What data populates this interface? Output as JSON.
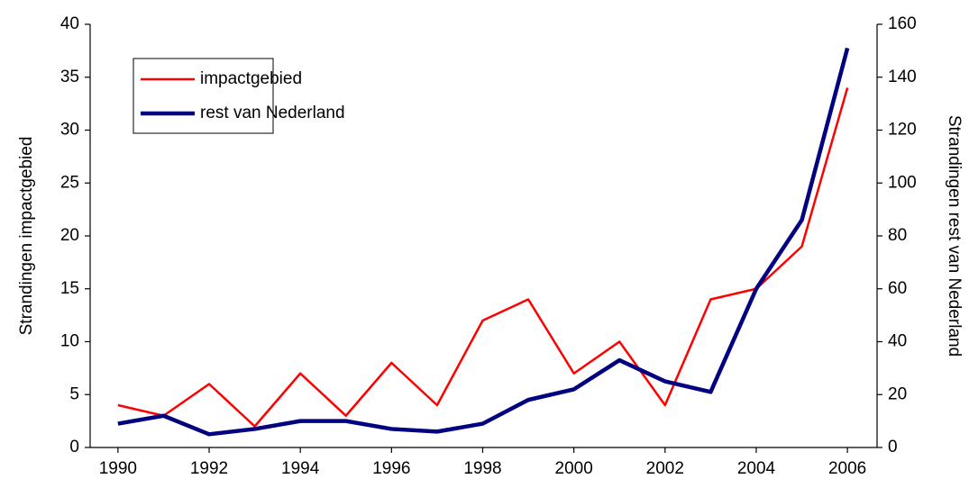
{
  "chart_data": {
    "type": "line",
    "x": [
      1990,
      1991,
      1992,
      1993,
      1994,
      1995,
      1996,
      1997,
      1998,
      1999,
      2000,
      2001,
      2002,
      2003,
      2004,
      2005,
      2006
    ],
    "series": [
      {
        "name": "impactgebied",
        "color": "#ff0000",
        "values": [
          4,
          3,
          6,
          2,
          7,
          3,
          8,
          4,
          12,
          14,
          7,
          10,
          4,
          14,
          15,
          19,
          34
        ]
      },
      {
        "name": "rest van Nederland",
        "color": "#000080",
        "axis": "y2",
        "values": [
          9,
          12,
          5,
          7,
          10,
          10,
          7,
          6,
          9,
          18,
          22,
          33,
          25,
          21,
          60,
          86,
          151
        ]
      }
    ],
    "ylabel": "Strandingen impactgebied",
    "y2label": "Strandingen rest van Nederland",
    "xlim": [
      1989.39,
      2006.65
    ],
    "xticks": [
      1990,
      1992,
      1994,
      1996,
      1998,
      2000,
      2002,
      2004,
      2006
    ],
    "ylim": [
      0,
      40
    ],
    "yticks": [
      0,
      5,
      10,
      15,
      20,
      25,
      30,
      35,
      40
    ],
    "y2lim": [
      0,
      160
    ],
    "y2ticks": [
      0,
      20,
      40,
      60,
      80,
      100,
      120,
      140,
      160
    ],
    "grid": false,
    "legend": "upper left"
  }
}
